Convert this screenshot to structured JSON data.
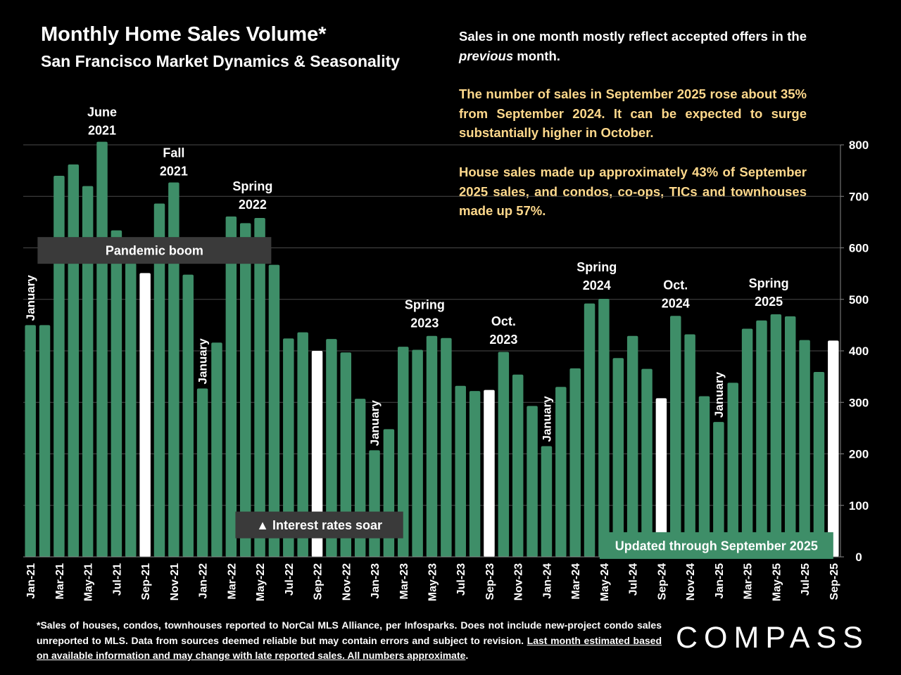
{
  "header": {
    "title": "Monthly Home Sales Volume*",
    "subtitle": "San Francisco Market Dynamics & Seasonality"
  },
  "notes": {
    "note1_pre": "Sales in one month mostly reflect accepted offers in the ",
    "note1_em": "previous",
    "note1_post": " month.",
    "note2": "The number of sales in September 2025 rose about 35% from September 2024. It can be expected to surge substantially higher in October.",
    "note3": "House sales made up approximately 43% of September 2025 sales, and condos, co-ops, TICs and townhouses made up 57%."
  },
  "footnote": {
    "text": "*Sales of houses, condos, townhouses reported to NorCal MLS Alliance, per Infosparks. Does not include new-project condo sales unreported to MLS. Data from sources deemed reliable but may contain errors and subject to revision. ",
    "underlined": "Last month estimated based on available information and may change with late reported sales. All numbers approximate",
    "end": "."
  },
  "logo": {
    "text": "COMPASS"
  },
  "colors": {
    "bar": "#3e8e68",
    "highlight_bar": "#ffffff",
    "note_accent": "#ffd98c",
    "label_box": "#3a3a3a",
    "update_box": "#3e8e68"
  },
  "chart_data": {
    "type": "bar",
    "ylim": [
      0,
      800
    ],
    "yticks": [
      0,
      100,
      200,
      300,
      400,
      500,
      600,
      700,
      800
    ],
    "y_axis_side": "right",
    "grid": true,
    "categories": [
      "Jan-21",
      "Feb-21",
      "Mar-21",
      "Apr-21",
      "May-21",
      "Jun-21",
      "Jul-21",
      "Aug-21",
      "Sep-21",
      "Oct-21",
      "Nov-21",
      "Dec-21",
      "Jan-22",
      "Feb-22",
      "Mar-22",
      "Apr-22",
      "May-22",
      "Jun-22",
      "Jul-22",
      "Aug-22",
      "Sep-22",
      "Oct-22",
      "Nov-22",
      "Dec-22",
      "Jan-23",
      "Feb-23",
      "Mar-23",
      "Apr-23",
      "May-23",
      "Jun-23",
      "Jul-23",
      "Aug-23",
      "Sep-23",
      "Oct-23",
      "Nov-23",
      "Dec-23",
      "Jan-24",
      "Feb-24",
      "Mar-24",
      "Apr-24",
      "May-24",
      "Jun-24",
      "Jul-24",
      "Aug-24",
      "Sep-24",
      "Oct-24",
      "Nov-24",
      "Dec-24",
      "Jan-25",
      "Feb-25",
      "Mar-25",
      "Apr-25",
      "May-25",
      "Jun-25",
      "Jul-25",
      "Aug-25",
      "Sep-25"
    ],
    "tick_labels": [
      "Jan-21",
      "Mar-21",
      "May-21",
      "Jul-21",
      "Sep-21",
      "Nov-21",
      "Jan-22",
      "Mar-22",
      "May-22",
      "Jul-22",
      "Sep-22",
      "Nov-22",
      "Jan-23",
      "Mar-23",
      "May-23",
      "Jul-23",
      "Sep-23",
      "Nov-23",
      "Jan-24",
      "Mar-24",
      "May-24",
      "Jul-24",
      "Sep-24",
      "Nov-24",
      "Jan-25",
      "Mar-25",
      "May-25",
      "Jul-25",
      "Sep-25"
    ],
    "values": [
      450,
      450,
      740,
      762,
      720,
      806,
      634,
      570,
      551,
      686,
      727,
      548,
      327,
      416,
      661,
      648,
      658,
      567,
      424,
      436,
      400,
      423,
      397,
      307,
      207,
      248,
      408,
      402,
      429,
      425,
      332,
      322,
      324,
      398,
      354,
      293,
      215,
      330,
      366,
      492,
      501,
      386,
      429,
      365,
      308,
      468,
      432,
      312,
      262,
      338,
      443,
      459,
      471,
      467,
      421,
      359,
      420
    ],
    "highlight_indices": [
      8,
      20,
      32,
      44,
      56
    ],
    "annotations": [
      {
        "text_lines": [
          "June",
          "2021"
        ],
        "index": 5,
        "value": 806
      },
      {
        "text_lines": [
          "Fall",
          "2021"
        ],
        "index": 10,
        "value": 727
      },
      {
        "text_lines": [
          "Spring",
          "2022"
        ],
        "index": 15.5,
        "value": 662
      },
      {
        "text_lines": [
          "Spring",
          "2023"
        ],
        "index": 27.5,
        "value": 432
      },
      {
        "text_lines": [
          "Oct.",
          "2023"
        ],
        "index": 33,
        "value": 400
      },
      {
        "text_lines": [
          "Spring",
          "2024"
        ],
        "index": 39.5,
        "value": 505
      },
      {
        "text_lines": [
          "Oct.",
          "2024"
        ],
        "index": 45,
        "value": 470
      },
      {
        "text_lines": [
          "Spring",
          "2025"
        ],
        "index": 51.5,
        "value": 474
      }
    ],
    "vertical_labels": [
      {
        "text": "January",
        "index": 0,
        "value": 450
      },
      {
        "text": "January",
        "index": 12,
        "value": 327
      },
      {
        "text": "January",
        "index": 24,
        "value": 207
      },
      {
        "text": "January",
        "index": 36,
        "value": 215
      },
      {
        "text": "January",
        "index": 48,
        "value": 262
      }
    ],
    "boxes": [
      {
        "text": "Pandemic boom",
        "from_index": 1,
        "to_index": 16.3,
        "value": 595
      },
      {
        "text": "▲ Interest rates soar",
        "from_index": 14.8,
        "to_index": 25.5,
        "value": 62
      },
      {
        "text": "Updated through September 2025",
        "from_index": 40.2,
        "to_index": 55.5,
        "value": 22
      }
    ]
  }
}
